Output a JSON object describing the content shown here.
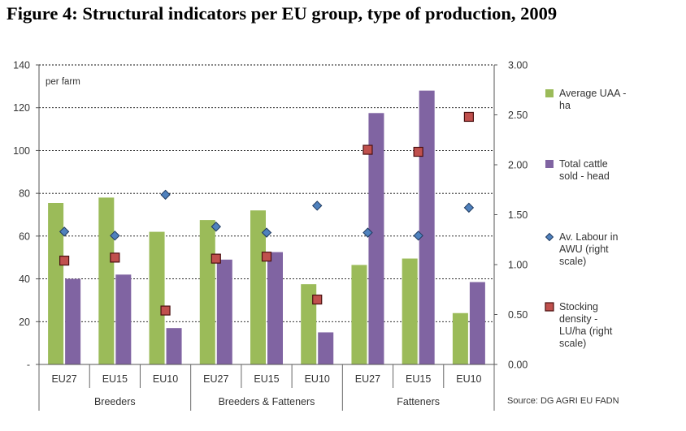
{
  "page": {
    "title": "Figure 4: Structural indicators per EU group, type of production, 2009"
  },
  "chart_data": {
    "type": "bar",
    "annotation": "per farm",
    "source": "Source: DG AGRI EU FADN",
    "categories": [
      "EU27",
      "EU15",
      "EU10",
      "EU27",
      "EU15",
      "EU10",
      "EU27",
      "EU15",
      "EU10"
    ],
    "groups": [
      {
        "label": "Breeders",
        "span": [
          0,
          2
        ]
      },
      {
        "label": "Breeders & Fatteners",
        "span": [
          3,
          5
        ]
      },
      {
        "label": "Fatteners",
        "span": [
          6,
          8
        ]
      }
    ],
    "left_axis": {
      "ylim": [
        0,
        140
      ],
      "ticks": [
        "-",
        "20",
        "40",
        "60",
        "80",
        "100",
        "120",
        "140"
      ],
      "tick_values": [
        0,
        20,
        40,
        60,
        80,
        100,
        120,
        140
      ]
    },
    "right_axis": {
      "ylim": [
        0,
        3
      ],
      "ticks": [
        "0.00",
        "0.50",
        "1.00",
        "1.50",
        "2.00",
        "2.50",
        "3.00"
      ],
      "tick_values": [
        0,
        0.5,
        1.0,
        1.5,
        2.0,
        2.5,
        3.0
      ]
    },
    "grid": true,
    "legend_position": "right",
    "series": [
      {
        "name": "Average UAA - ha",
        "name_lines": [
          "Average UAA -",
          "ha"
        ],
        "kind": "bar",
        "axis": "left",
        "color": "#9bbb59",
        "values": [
          75.5,
          78,
          62,
          67.5,
          72,
          37.5,
          46.5,
          49.5,
          24
        ]
      },
      {
        "name": "Total cattle sold - head",
        "name_lines": [
          "Total cattle",
          "sold - head"
        ],
        "kind": "bar",
        "axis": "left",
        "color": "#8064a2",
        "values": [
          40,
          42,
          17,
          49,
          52.5,
          15,
          117.5,
          128,
          38.5
        ]
      },
      {
        "name": "Av. Labour in AWU (right scale)",
        "name_lines": [
          "Av. Labour in",
          "AWU (right",
          "scale)"
        ],
        "kind": "marker",
        "marker": "diamond",
        "axis": "right",
        "color": "#4f81bd",
        "values": [
          1.33,
          1.29,
          1.7,
          1.38,
          1.32,
          1.59,
          1.32,
          1.29,
          1.57
        ]
      },
      {
        "name": "Stocking density - LU/ha (right scale)",
        "name_lines": [
          "Stocking",
          "density -",
          "LU/ha (right",
          "scale)"
        ],
        "kind": "marker",
        "marker": "square",
        "axis": "right",
        "color": "#c0504d",
        "values": [
          1.04,
          1.07,
          0.54,
          1.06,
          1.08,
          0.65,
          2.15,
          2.13,
          2.48
        ]
      }
    ]
  }
}
